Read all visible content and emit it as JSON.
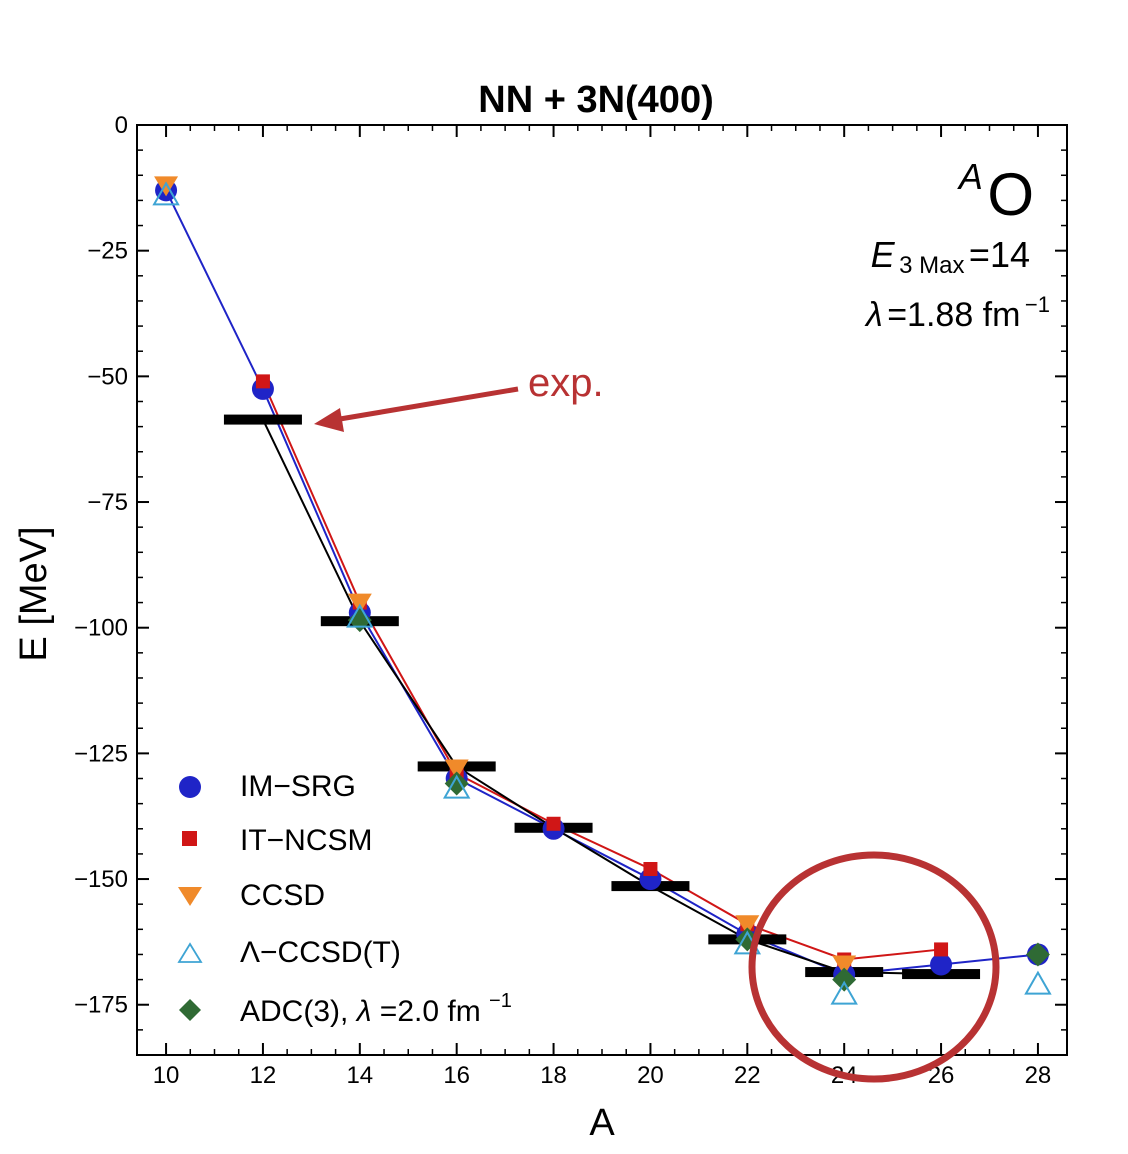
{
  "chart_data": {
    "type": "scatter",
    "title": "NN + 3N(400)",
    "xlabel": "A",
    "ylabel": "E [MeV]",
    "xlim": [
      9.4,
      28.6
    ],
    "ylim": [
      -185,
      0
    ],
    "xticks": [
      "10",
      "12",
      "14",
      "16",
      "18",
      "20",
      "22",
      "24",
      "26",
      "28"
    ],
    "yticks": [
      "0",
      "−25",
      "−50",
      "−75",
      "−100",
      "−125",
      "−150",
      "−175"
    ],
    "ytick_values": [
      0,
      -25,
      -50,
      -75,
      -100,
      -125,
      -150,
      -175
    ],
    "grid": false,
    "legend_position": "bottom-left",
    "annotations": {
      "nucleus": {
        "mass_sup": "A",
        "symbol": "O"
      },
      "e3max": {
        "symbol": "E",
        "sub": "3 Max",
        "value": "=14"
      },
      "lambda": {
        "symbol": "λ",
        "value": "=1.88 fm",
        "sup": "−1"
      },
      "exp_label": "exp.",
      "highlight": "circle around A = 24–26"
    },
    "experiment": {
      "x": [
        12,
        14,
        16,
        18,
        20,
        22,
        24,
        26
      ],
      "y": [
        -58.6,
        -98.7,
        -127.6,
        -139.8,
        -151.4,
        -162.0,
        -168.5,
        -168.9
      ]
    },
    "series": [
      {
        "name": "IM−SRG",
        "marker": "circle",
        "color": "#1f24c7",
        "x": [
          10,
          12,
          14,
          16,
          18,
          20,
          22,
          24,
          26,
          28
        ],
        "y": [
          -13,
          -52.5,
          -97,
          -130,
          -140,
          -150,
          -161,
          -169,
          -167,
          -165
        ]
      },
      {
        "name": "IT−NCSM",
        "marker": "square",
        "color": "#d01616",
        "x": [
          12,
          14,
          16,
          18,
          20,
          22,
          24,
          26
        ],
        "y": [
          -51,
          -95,
          -129,
          -139,
          -148,
          -159,
          -166,
          -164
        ]
      },
      {
        "name": "CCSD",
        "marker": "triangle-down",
        "color": "#f08a2a",
        "x": [
          10,
          14,
          16,
          22,
          24
        ],
        "y": [
          -12,
          -95,
          -128,
          -159,
          -167
        ]
      },
      {
        "name": "Λ−CCSD(T)",
        "marker": "triangle-up-open",
        "color": "#3ea4d4",
        "x": [
          10,
          14,
          16,
          22,
          24,
          28
        ],
        "y": [
          -14,
          -98,
          -132,
          -163,
          -173,
          -171
        ]
      },
      {
        "name": "ADC(3), ",
        "name_lambda": "λ",
        "name_rest": "=2.0 fm",
        "name_sup": "−1",
        "marker": "diamond",
        "color": "#2f6a34",
        "x": [
          14,
          16,
          22,
          24,
          28
        ],
        "y": [
          -98.5,
          -131,
          -162,
          -170,
          -165
        ]
      }
    ],
    "lines": [
      {
        "color": "#1f24c7",
        "x": [
          10,
          12,
          14,
          16,
          18,
          20,
          22,
          24,
          26,
          28
        ],
        "y": [
          -13,
          -52.5,
          -97,
          -130,
          -140,
          -150,
          -161,
          -169,
          -167,
          -165
        ]
      },
      {
        "color": "#d01616",
        "x": [
          12,
          14,
          16,
          18,
          20,
          22,
          24,
          26
        ],
        "y": [
          -51,
          -95,
          -129,
          -139,
          -148,
          -159,
          -166,
          -164
        ]
      },
      {
        "color": "#000000",
        "x": [
          12,
          14,
          16,
          18,
          20,
          22,
          24,
          26
        ],
        "y": [
          -58.6,
          -98.7,
          -127.6,
          -139.8,
          -151.4,
          -162.0,
          -168.5,
          -168.9
        ]
      }
    ]
  }
}
